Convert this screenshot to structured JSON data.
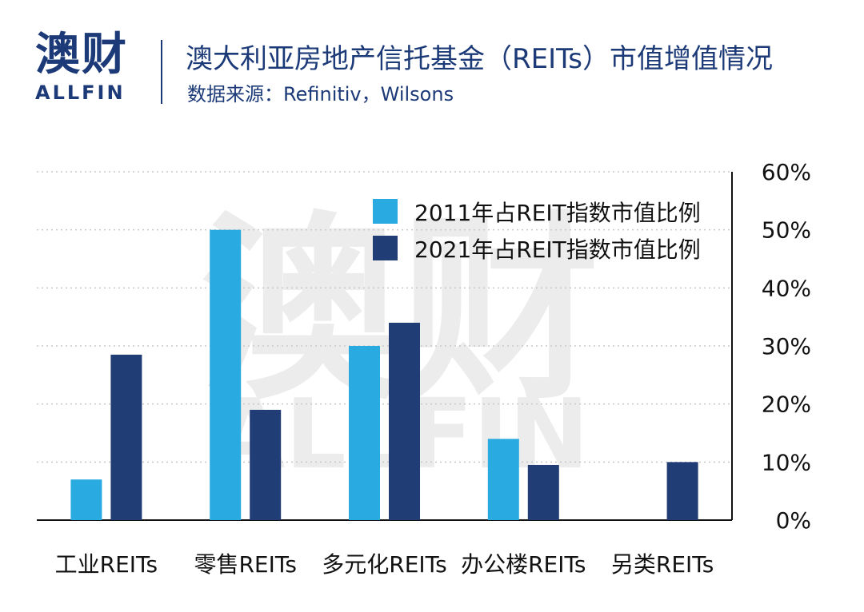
{
  "logo": {
    "cn": "澳财",
    "en": "ALLFIN"
  },
  "header": {
    "title": "澳大利亚房地产信托基金（REITs）市值增值情况",
    "source": "数据来源：Refinitiv，Wilsons"
  },
  "colors": {
    "series_2011": "#29abe2",
    "series_2021": "#213d76",
    "brand": "#1c3a78"
  },
  "chart_data": {
    "type": "bar",
    "categories": [
      "工业REITs",
      "零售REITs",
      "多元化REITs",
      "办公楼REITs",
      "另类REITs"
    ],
    "series": [
      {
        "name": "2011年占REIT指数市值比例",
        "values": [
          7,
          50,
          30,
          14,
          0
        ]
      },
      {
        "name": "2021年占REIT指数市值比例",
        "values": [
          28.5,
          19,
          34,
          9.5,
          10
        ]
      }
    ],
    "yaxis": {
      "position": "right",
      "ticks": [
        "0%",
        "10%",
        "20%",
        "30%",
        "40%",
        "50%",
        "60%"
      ]
    },
    "ylim": [
      0,
      60
    ],
    "grid": true,
    "legend_position": "top-right",
    "watermark": {
      "cn": "澳财",
      "en": "ALLFIN"
    }
  }
}
